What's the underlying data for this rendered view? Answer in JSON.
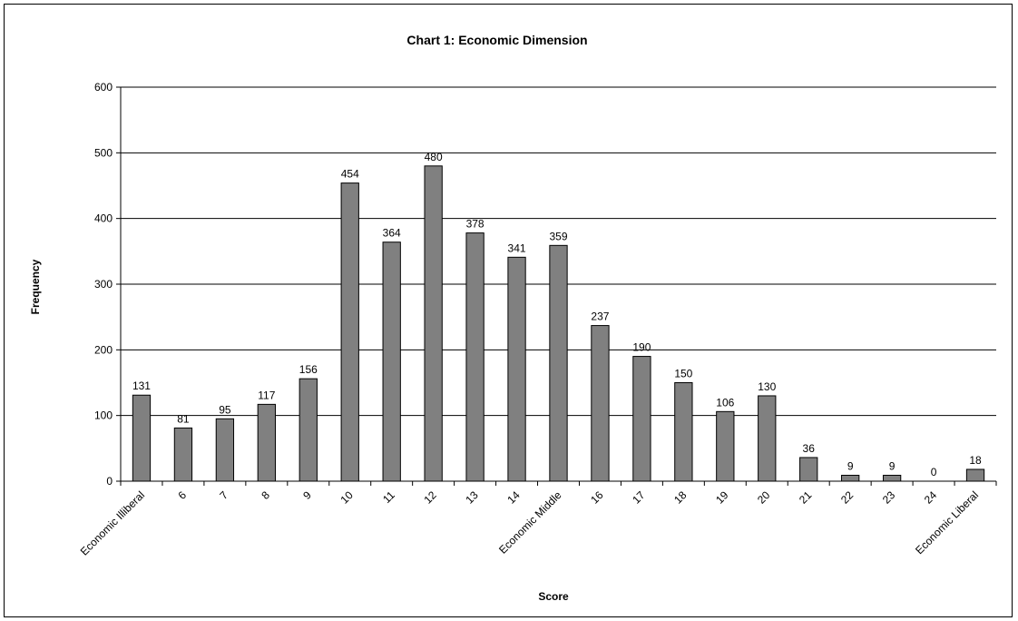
{
  "chart_data": {
    "type": "bar",
    "title": "Chart 1: Economic Dimension",
    "xlabel": "Score",
    "ylabel": "Frequency",
    "ylim": [
      0,
      600
    ],
    "yticks": [
      0,
      100,
      200,
      300,
      400,
      500,
      600
    ],
    "grid": true,
    "legend": "none",
    "categories": [
      "Economic Illiberal",
      "6",
      "7",
      "8",
      "9",
      "10",
      "11",
      "12",
      "13",
      "14",
      "Economic Middle",
      "16",
      "17",
      "18",
      "19",
      "20",
      "21",
      "22",
      "23",
      "24",
      "Economic Liberal"
    ],
    "values": [
      131,
      81,
      95,
      117,
      156,
      454,
      364,
      480,
      378,
      341,
      359,
      237,
      190,
      150,
      106,
      130,
      36,
      9,
      9,
      0,
      18
    ],
    "data_labels": [
      "131",
      "81",
      "95",
      "117",
      "156",
      "454",
      "364",
      "480",
      "378",
      "341",
      "359",
      "237",
      "190",
      "150",
      "106",
      "130",
      "36",
      "9",
      "9",
      "0",
      "18"
    ],
    "bar_color": "#808080",
    "bar_outline": "#000000",
    "grid_color": "#000000"
  }
}
